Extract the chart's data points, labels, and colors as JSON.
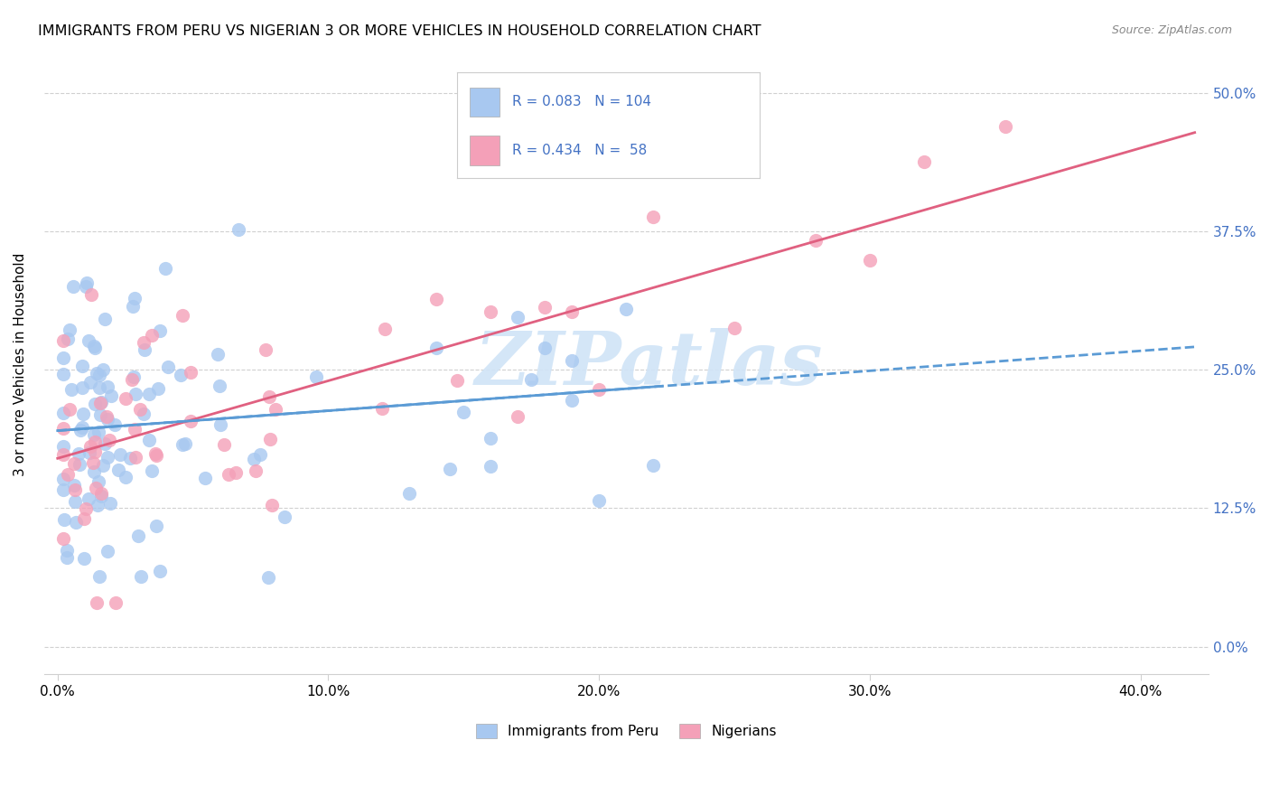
{
  "title": "IMMIGRANTS FROM PERU VS NIGERIAN 3 OR MORE VEHICLES IN HOUSEHOLD CORRELATION CHART",
  "source": "Source: ZipAtlas.com",
  "xlabel_tick_vals": [
    0.0,
    0.1,
    0.2,
    0.3,
    0.4
  ],
  "xlabel_tick_labels": [
    "0.0%",
    "10.0%",
    "20.0%",
    "30.0%",
    "40.0%"
  ],
  "ylabel_tick_vals": [
    0.0,
    0.125,
    0.25,
    0.375,
    0.5
  ],
  "ylabel_tick_labels": [
    "0.0%",
    "12.5%",
    "25.0%",
    "37.5%",
    "50.0%"
  ],
  "ylabel": "3 or more Vehicles in Household",
  "xlim": [
    -0.005,
    0.425
  ],
  "ylim": [
    -0.025,
    0.535
  ],
  "legend_bottom_labels": [
    "Immigrants from Peru",
    "Nigerians"
  ],
  "peru_R": "0.083",
  "peru_N": "104",
  "nigerian_R": "0.434",
  "nigerian_N": "58",
  "peru_color": "#a8c8f0",
  "nigerian_color": "#f4a0b8",
  "peru_line_color": "#5b9bd5",
  "nigerian_line_color": "#e06080",
  "right_axis_color": "#4472c4",
  "background_color": "#ffffff",
  "watermark": "ZIPatlas",
  "watermark_color": "#d0e4f7",
  "grid_color": "#d0d0d0",
  "peru_line_intercept": 0.195,
  "peru_line_slope": 0.18,
  "nigerian_line_intercept": 0.17,
  "nigerian_line_slope": 0.7
}
